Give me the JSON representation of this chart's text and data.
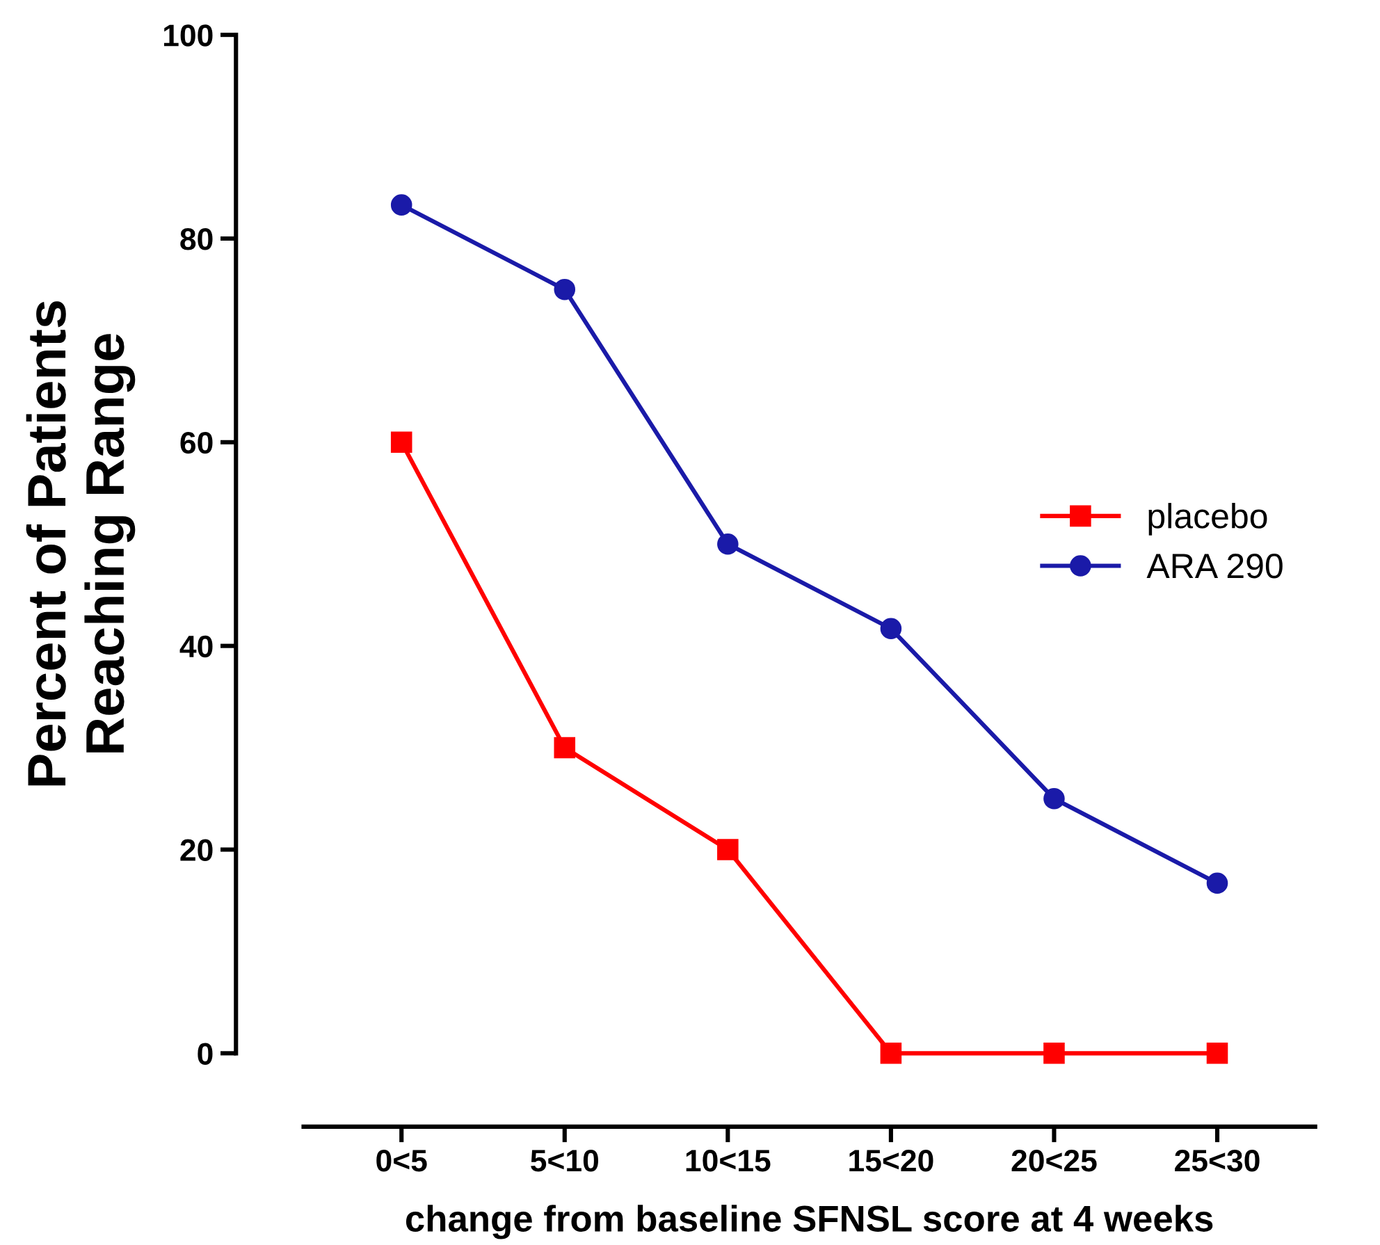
{
  "chart_data": {
    "type": "line",
    "xlabel": "change from baseline SFNSL score at 4 weeks",
    "ylabel": "Percent of Patients\nReaching Range",
    "categories": [
      "0<5",
      "5<10",
      "10<15",
      "15<20",
      "20<25",
      "25<30"
    ],
    "series": [
      {
        "name": "placebo",
        "color": "#ff0000",
        "marker": "square",
        "values": [
          60,
          30,
          20,
          0,
          0,
          0
        ]
      },
      {
        "name": "ARA 290",
        "color": "#1a1aa8",
        "marker": "circle",
        "values": [
          83.3,
          75,
          50,
          41.7,
          25,
          16.7
        ]
      }
    ],
    "ylim": [
      0,
      100
    ],
    "yticks": [
      0,
      20,
      40,
      60,
      80,
      100
    ],
    "legend": "center right",
    "grid": false,
    "line_style": "solid"
  }
}
